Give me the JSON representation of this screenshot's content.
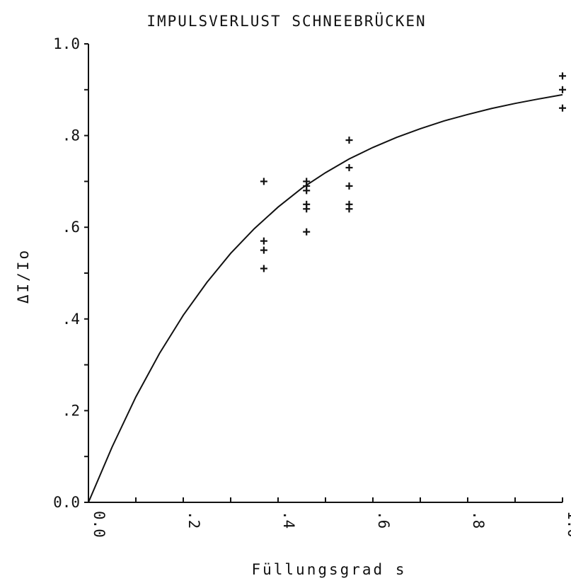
{
  "chart_data": {
    "type": "scatter",
    "title": "IMPULSVERLUST SCHNEEBRÜCKEN",
    "xlabel": "Füllungsgrad s",
    "ylabel": "ΔI/Io",
    "xlim": [
      0.0,
      1.0
    ],
    "ylim": [
      0.0,
      1.0
    ],
    "x_ticks": [
      "0.0",
      ".2",
      ".4",
      ".6",
      ".8",
      "1.0"
    ],
    "y_ticks": [
      "0.0",
      ".2",
      ".4",
      ".6",
      ".8",
      "1.0"
    ],
    "grid": false,
    "series": [
      {
        "kind": "points",
        "marker": "+",
        "points": [
          {
            "x": 0.37,
            "y": 0.7
          },
          {
            "x": 0.37,
            "y": 0.57
          },
          {
            "x": 0.37,
            "y": 0.55
          },
          {
            "x": 0.37,
            "y": 0.51
          },
          {
            "x": 0.46,
            "y": 0.7
          },
          {
            "x": 0.46,
            "y": 0.69
          },
          {
            "x": 0.46,
            "y": 0.68
          },
          {
            "x": 0.46,
            "y": 0.65
          },
          {
            "x": 0.46,
            "y": 0.64
          },
          {
            "x": 0.46,
            "y": 0.59
          },
          {
            "x": 0.55,
            "y": 0.79
          },
          {
            "x": 0.55,
            "y": 0.73
          },
          {
            "x": 0.55,
            "y": 0.69
          },
          {
            "x": 0.55,
            "y": 0.65
          },
          {
            "x": 0.55,
            "y": 0.64
          },
          {
            "x": 1.0,
            "y": 0.93
          },
          {
            "x": 1.0,
            "y": 0.9
          },
          {
            "x": 1.0,
            "y": 0.86
          }
        ]
      },
      {
        "kind": "curve",
        "x": [
          0.0,
          0.05,
          0.1,
          0.15,
          0.2,
          0.25,
          0.3,
          0.35,
          0.4,
          0.45,
          0.5,
          0.55,
          0.6,
          0.65,
          0.7,
          0.75,
          0.8,
          0.85,
          0.9,
          0.95,
          1.0
        ],
        "y": [
          0.0,
          0.121,
          0.23,
          0.325,
          0.408,
          0.48,
          0.543,
          0.597,
          0.644,
          0.685,
          0.719,
          0.749,
          0.774,
          0.796,
          0.815,
          0.832,
          0.846,
          0.859,
          0.87,
          0.88,
          0.889
        ]
      }
    ]
  }
}
